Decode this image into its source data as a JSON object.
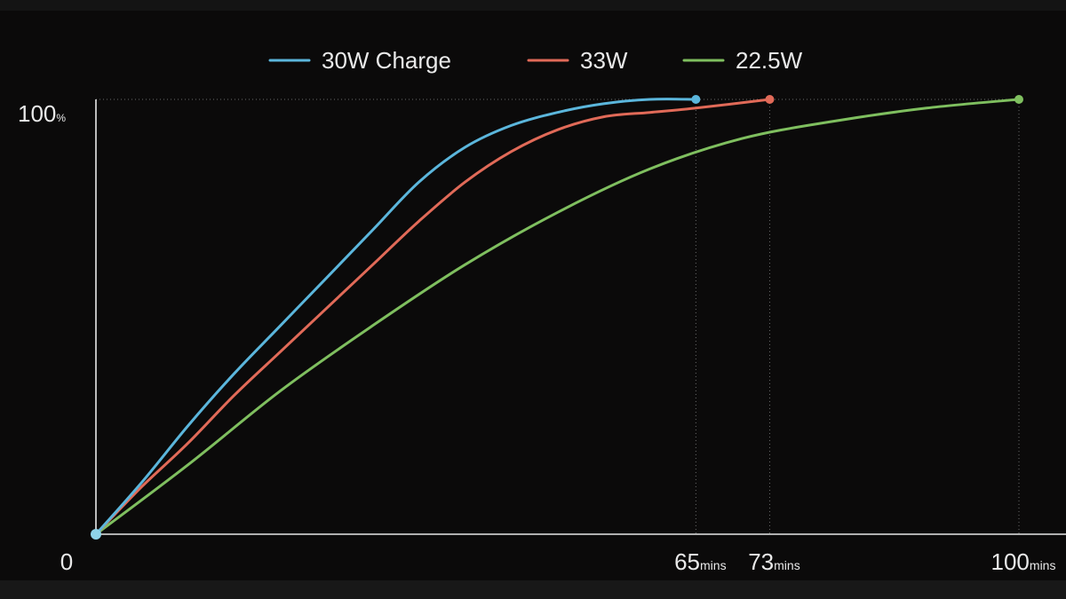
{
  "chart_data": {
    "type": "line",
    "xlabel": "",
    "ylabel": "",
    "xlim": [
      0,
      100
    ],
    "ylim": [
      0,
      100
    ],
    "legend_position": "top-center",
    "grid": false,
    "y_ticks": [
      {
        "value": 0,
        "label": "0",
        "unit": ""
      },
      {
        "value": 100,
        "label": "100",
        "unit": "%"
      }
    ],
    "x_ticks": [
      {
        "value": 65,
        "label": "65",
        "unit": "mins"
      },
      {
        "value": 73,
        "label": "73",
        "unit": "mins"
      },
      {
        "value": 100,
        "label": "100",
        "unit": "mins"
      }
    ],
    "series": [
      {
        "name": "30W Charge",
        "color": "#5bb6dc",
        "x": [
          0,
          5,
          10,
          15,
          20,
          25,
          30,
          35,
          40,
          45,
          50,
          55,
          60,
          65
        ],
        "y": [
          0,
          12,
          25,
          37,
          48,
          59,
          70,
          81,
          89,
          94,
          97,
          99,
          100,
          100
        ]
      },
      {
        "name": "33W",
        "color": "#e16a58",
        "x": [
          0,
          5,
          10,
          15,
          20,
          25,
          30,
          35,
          40,
          45,
          50,
          55,
          60,
          65,
          73
        ],
        "y": [
          0,
          11,
          21,
          32,
          42,
          52,
          62,
          72,
          81,
          88,
          93,
          96,
          97,
          98,
          100
        ]
      },
      {
        "name": "22.5W",
        "color": "#7fbf5f",
        "x": [
          0,
          10,
          20,
          30,
          40,
          50,
          60,
          70,
          80,
          90,
          100
        ],
        "y": [
          0,
          16,
          33,
          48,
          62,
          74,
          84,
          91,
          95,
          98,
          100
        ]
      }
    ]
  }
}
